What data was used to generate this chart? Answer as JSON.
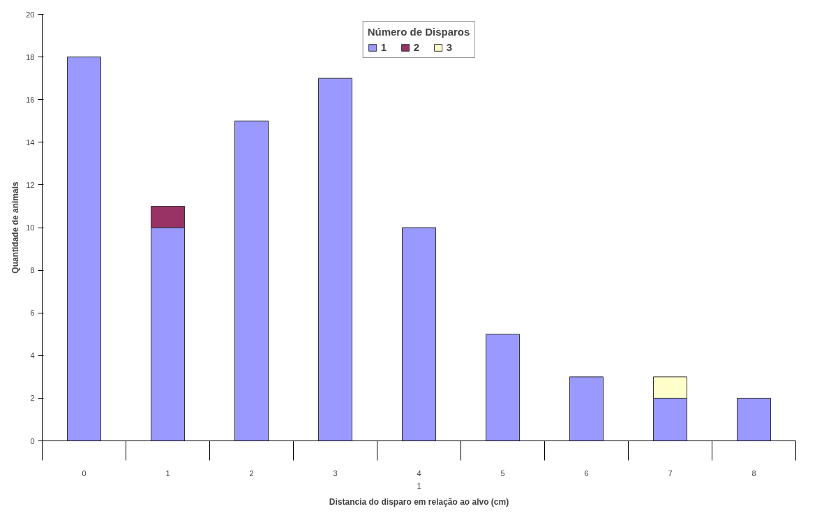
{
  "chart_data": {
    "type": "bar",
    "stacked": true,
    "categories": [
      "0",
      "1",
      "2",
      "3",
      "4",
      "5",
      "6",
      "7",
      "8"
    ],
    "series": [
      {
        "name": "1",
        "color": "#9999ff",
        "values": [
          18,
          10,
          15,
          17,
          10,
          5,
          3,
          2,
          2
        ]
      },
      {
        "name": "2",
        "color": "#993366",
        "values": [
          null,
          1,
          null,
          null,
          null,
          null,
          null,
          null,
          null
        ]
      },
      {
        "name": "3",
        "color": "#ffffcc",
        "values": [
          null,
          null,
          null,
          null,
          null,
          null,
          null,
          1,
          null
        ]
      }
    ],
    "legend_title": "Número de Disparos",
    "legend": "top",
    "xlabel": "Distancia do disparo em relação ao alvo (cm)",
    "ylabel": "Quantidade de animais",
    "annotations": [
      "1"
    ],
    "ylim": [
      0,
      20
    ],
    "yticks": [
      0,
      2,
      4,
      6,
      8,
      10,
      12,
      14,
      16,
      18,
      20
    ],
    "grid": false
  }
}
